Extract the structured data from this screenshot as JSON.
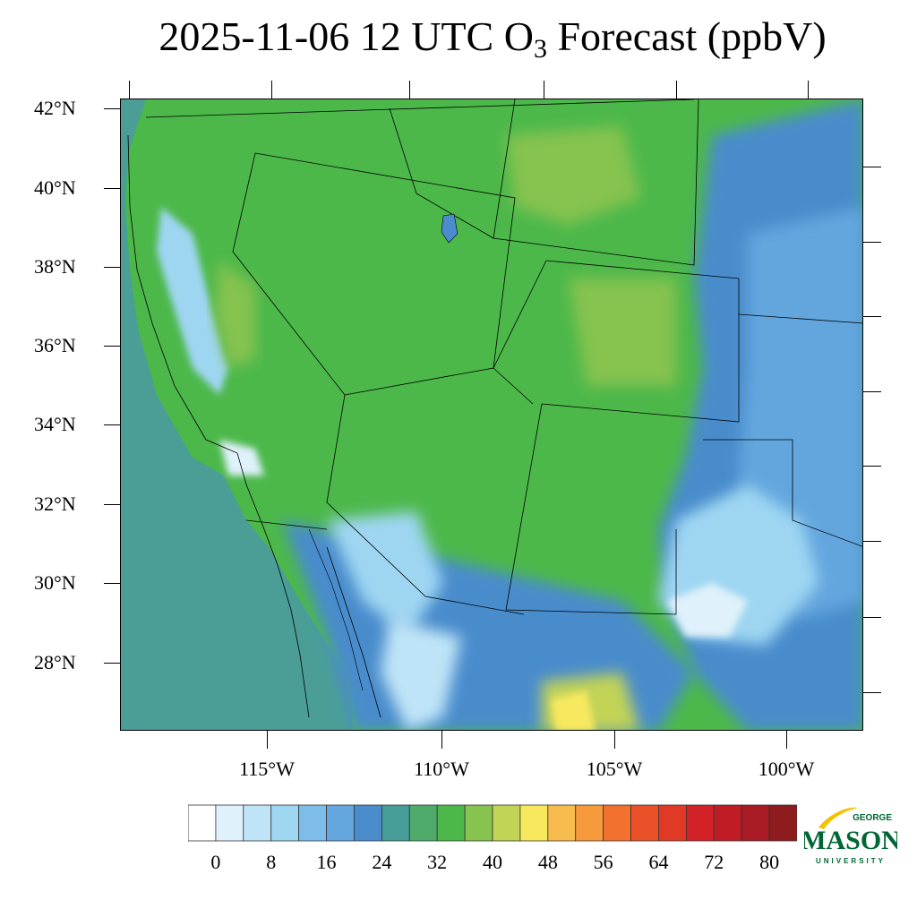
{
  "title": {
    "prefix": "2025-11-06 12 UTC O",
    "subscript": "3",
    "suffix": " Forecast (ppbV)"
  },
  "lat_labels": [
    "42°N",
    "40°N",
    "38°N",
    "36°N",
    "34°N",
    "32°N",
    "30°N",
    "28°N"
  ],
  "lon_labels": [
    "115°W",
    "110°W",
    "105°W",
    "100°W"
  ],
  "colorbar": {
    "tick_labels": [
      "0",
      "8",
      "16",
      "24",
      "32",
      "40",
      "48",
      "56",
      "64",
      "72",
      "80"
    ],
    "colors": [
      "#ffffff",
      "#dff1fb",
      "#bfe4f7",
      "#9ed6f2",
      "#7ebcea",
      "#64a6de",
      "#4a8ccc",
      "#479d98",
      "#4fab6a",
      "#4cb84a",
      "#86c34f",
      "#c2d356",
      "#f7e85e",
      "#f8bc4e",
      "#f69a3b",
      "#f2712f",
      "#ea5128",
      "#e03a27",
      "#d22127",
      "#bf1c26",
      "#a81b24",
      "#8e1b1e"
    ]
  },
  "logo": {
    "line1": "GEORGE",
    "line2": "MASON",
    "line3": "UNIVERSITY"
  }
}
